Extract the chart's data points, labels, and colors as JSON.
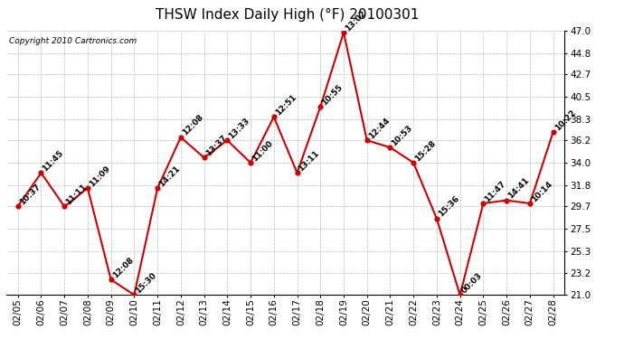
{
  "title": "THSW Index Daily High (°F) 20100301",
  "copyright": "Copyright 2010 Cartronics.com",
  "background_color": "#ffffff",
  "plot_bg_color": "#ffffff",
  "grid_color": "#bbbbbb",
  "line_color": "#cc0000",
  "marker_color": "#cc0000",
  "dates": [
    "02/05",
    "02/06",
    "02/07",
    "02/08",
    "02/09",
    "02/10",
    "02/11",
    "02/12",
    "02/13",
    "02/14",
    "02/15",
    "02/16",
    "02/17",
    "02/18",
    "02/19",
    "02/20",
    "02/21",
    "02/22",
    "02/23",
    "02/24",
    "02/25",
    "02/26",
    "02/27",
    "02/28"
  ],
  "values": [
    29.7,
    33.0,
    29.7,
    31.5,
    22.5,
    21.0,
    31.5,
    36.5,
    34.5,
    36.2,
    34.0,
    38.5,
    33.0,
    39.5,
    46.8,
    36.2,
    35.5,
    34.0,
    28.5,
    21.0,
    30.0,
    30.3,
    30.0,
    37.0
  ],
  "labels": [
    "10:37",
    "11:45",
    "11:11",
    "11:09",
    "12:08",
    "15:30",
    "14:21",
    "12:08",
    "13:37",
    "13:33",
    "11:00",
    "12:51",
    "13:11",
    "10:55",
    "13:02",
    "12:44",
    "10:53",
    "15:28",
    "15:36",
    "00:03",
    "11:47",
    "14:41",
    "10:14",
    "10:22"
  ],
  "ylim": [
    21.0,
    47.0
  ],
  "yticks": [
    21.0,
    23.2,
    25.3,
    27.5,
    29.7,
    31.8,
    34.0,
    36.2,
    38.3,
    40.5,
    42.7,
    44.8,
    47.0
  ],
  "title_fontsize": 11,
  "label_fontsize": 6.5,
  "tick_fontsize": 7.5,
  "copyright_fontsize": 6.5
}
